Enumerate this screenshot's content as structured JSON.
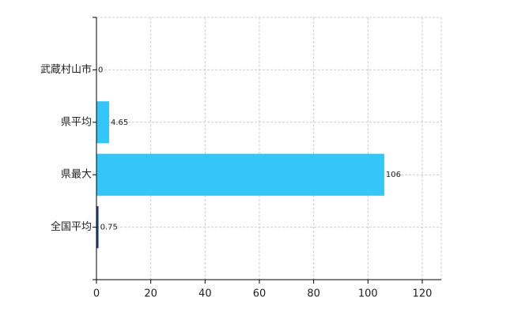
{
  "chart_data": {
    "type": "hbar",
    "categories": [
      "武蔵村山市",
      "県平均",
      "県最大",
      "全国平均"
    ],
    "values": [
      0,
      4.65,
      106,
      0.75
    ],
    "colors": [
      "#33c6f7",
      "#33c6f7",
      "#33c6f7",
      "#1f3f8f"
    ],
    "xlim": [
      0,
      127
    ],
    "xticks": [
      0,
      20,
      40,
      60,
      80,
      100,
      120
    ],
    "grid": true
  }
}
